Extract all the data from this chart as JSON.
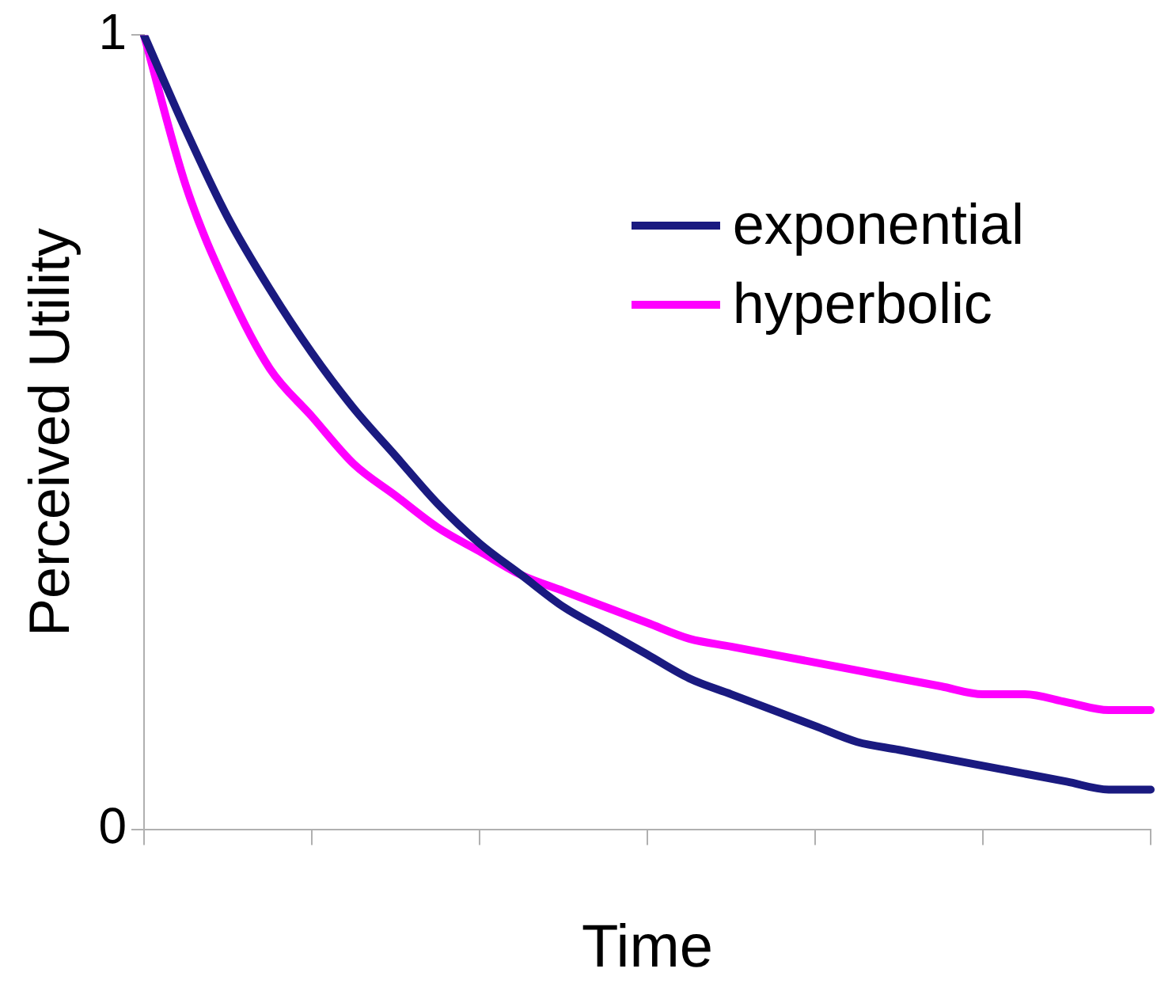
{
  "chart_data": {
    "type": "line",
    "xlabel": "Time",
    "ylabel": "Perceived Utility",
    "categories": [
      null,
      null,
      null,
      null,
      null,
      null,
      null,
      null,
      null,
      null,
      null,
      null,
      null,
      null,
      null,
      null,
      null,
      null,
      null,
      null,
      null,
      null,
      null,
      null,
      null
    ],
    "series": [
      {
        "name": "exponential",
        "color": "#1a1a80",
        "values": [
          1,
          0.88,
          0.77,
          0.68,
          0.6,
          0.53,
          0.47,
          0.41,
          0.36,
          0.32,
          0.28,
          0.25,
          0.22,
          0.19,
          0.17,
          0.15,
          0.13,
          0.11,
          0.1,
          0.09,
          0.08,
          0.07,
          0.06,
          0.05,
          0.05
        ]
      },
      {
        "name": "hyperbolic",
        "color": "#ff00ff",
        "values": [
          1,
          0.81,
          0.68,
          0.58,
          0.52,
          0.46,
          0.42,
          0.38,
          0.35,
          0.32,
          0.3,
          0.28,
          0.26,
          0.24,
          0.23,
          0.22,
          0.21,
          0.2,
          0.19,
          0.18,
          0.17,
          0.17,
          0.16,
          0.15,
          0.15
        ]
      }
    ],
    "ylim": [
      0,
      1
    ],
    "yticks": [
      0,
      1
    ],
    "grid": false,
    "legend": "top right",
    "marker": "none",
    "line_style": "solid"
  }
}
